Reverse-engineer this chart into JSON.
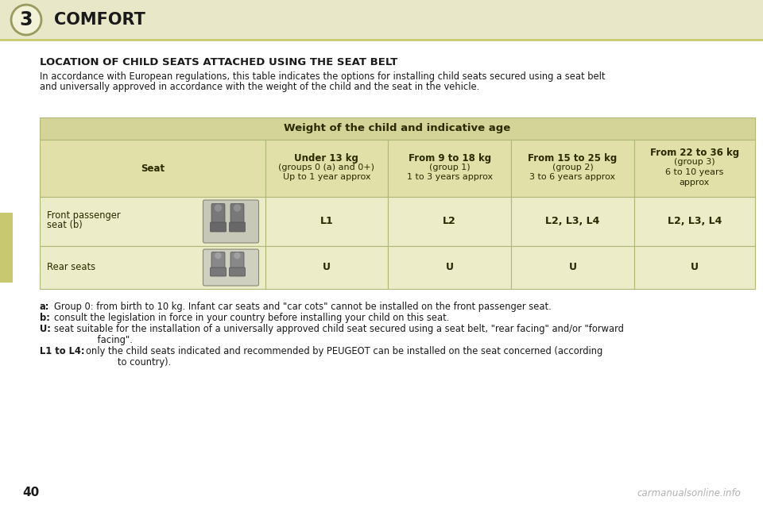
{
  "page_bg": "#ffffff",
  "header_bg": "#e8e8c8",
  "header_text": "COMFORT",
  "header_num": "3",
  "title": "LOCATION OF CHILD SEATS ATTACHED USING THE SEAT BELT",
  "intro_line1": "In accordance with European regulations, this table indicates the options for installing child seats secured using a seat belt",
  "intro_line2": "and universally approved in accordance with the weight of the child and the seat in the vehicle.",
  "table_header_bg": "#d4d498",
  "table_header_text": "Weight of the child and indicative age",
  "table_col_bg": "#e0e0a8",
  "table_cell_bg": "#ececc8",
  "col_headers": [
    "Seat",
    "Under 13 kg\n(groups 0 (a) and 0+)\nUp to 1 year approx",
    "From 9 to 18 kg\n(group 1)\n1 to 3 years approx",
    "From 15 to 25 kg\n(group 2)\n3 to 6 years approx",
    "From 22 to 36 kg\n(group 3)\n6 to 10 years\napprox"
  ],
  "row1_label1": "Front passenger",
  "row1_label2": "seat (b)",
  "row1_values": [
    "L1",
    "L2",
    "L2, L3, L4",
    "L2, L3, L4"
  ],
  "row2_label": "Rear seats",
  "row2_values": [
    "U",
    "U",
    "U",
    "U"
  ],
  "footnotes": [
    {
      "label": "a:",
      "text": "Group 0: from birth to 10 kg. Infant car seats and \"car cots\" cannot be installed on the front passenger seat."
    },
    {
      "label": "b:",
      "text": "consult the legislation in force in your country before installing your child on this seat."
    },
    {
      "label": "U:",
      "text": "seat suitable for the installation of a universally approved child seat secured using a seat belt, \"rear facing\" and/or \"forward"
    },
    {
      "label": "",
      "text": "    facing\"."
    },
    {
      "label": "L1 to L4:",
      "text": "only the child seats indicated and recommended by PEUGEOT can be installed on the seat concerned (according"
    },
    {
      "label": "",
      "text": "           to country)."
    }
  ],
  "page_num": "40",
  "watermark": "carmanualsonline.info",
  "left_tab_color": "#c8c870",
  "border_color": "#b0b878",
  "text_color": "#1a1a1a",
  "table_text_color": "#2a2a00",
  "header_line_color": "#c8c870"
}
